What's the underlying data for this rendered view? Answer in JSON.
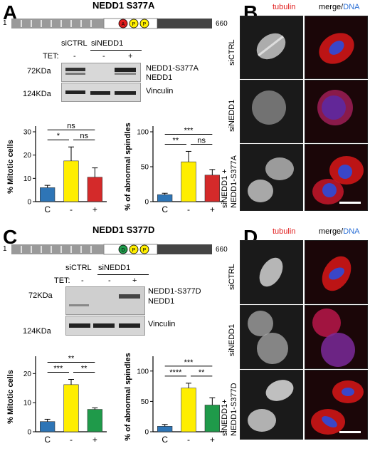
{
  "panelA": {
    "letter": "A",
    "title": "NEDD1 S377A",
    "domain_start": "1",
    "domain_end": "660",
    "circles": [
      "A",
      "P",
      "P"
    ],
    "blot_header": {
      "siCTRL": "siCTRL",
      "siNEDD1": "siNEDD1",
      "tet_label": "TET:",
      "tet_values": [
        "-",
        "-",
        "+"
      ]
    },
    "blot_labels": {
      "kda72": "72KDa",
      "kda124": "124KDa",
      "band1": "NEDD1-S377A",
      "band2": "NEDD1",
      "band3": "Vinculin"
    }
  },
  "panelB": {
    "letter": "B",
    "col1": "tubulin",
    "col2_merge": "merge/",
    "col2_dna": "DNA",
    "rows": [
      "siCTRL",
      "siNEDD1",
      "siNEDD1 +",
      "NEDD1-S377A"
    ]
  },
  "panelC": {
    "letter": "C",
    "title": "NEDD1 S377D",
    "domain_start": "1",
    "domain_end": "660",
    "circles": [
      "D",
      "P",
      "P"
    ],
    "blot_header": {
      "siCTRL": "siCTRL",
      "siNEDD1": "siNEDD1",
      "tet_label": "TET:",
      "tet_values": [
        "-",
        "-",
        "+"
      ]
    },
    "blot_labels": {
      "kda72": "72KDa",
      "kda124": "124KDa",
      "band1": "NEDD1-S377D",
      "band2": "NEDD1",
      "band3": "Vinculin"
    }
  },
  "panelD": {
    "letter": "D",
    "col1": "tubulin",
    "col2_merge": "merge/",
    "col2_dna": "DNA",
    "rows": [
      "siCTRL",
      "siNEDD1",
      "siNEDD1+",
      "NEDD1-S377D"
    ]
  },
  "colors": {
    "C": "#2e75b6",
    "minus": "#ffee00",
    "plusA": "#d42a2a",
    "plusD": "#1f9a4a",
    "red": "#e01c1c",
    "blue": "#2a6fd6"
  },
  "chart_data": [
    {
      "type": "bar",
      "ylabel": "% Mitotic cells",
      "categories": [
        "C",
        "-",
        "+"
      ],
      "values": [
        6,
        17.5,
        10.5
      ],
      "errors": [
        1,
        6,
        4
      ],
      "yticks": [
        0,
        10,
        20,
        30
      ],
      "ylim": [
        0,
        30
      ],
      "sig": [
        {
          "pair": [
            0,
            2
          ],
          "label": "ns"
        },
        {
          "pair": [
            0,
            1
          ],
          "label": "*"
        },
        {
          "pair": [
            1,
            2
          ],
          "label": "ns"
        }
      ]
    },
    {
      "type": "bar",
      "ylabel": "% of abnormal spindles",
      "categories": [
        "C",
        "-",
        "+"
      ],
      "values": [
        10,
        57,
        38
      ],
      "errors": [
        2,
        15,
        8
      ],
      "yticks": [
        0,
        50,
        100
      ],
      "ylim": [
        0,
        100
      ],
      "sig": [
        {
          "pair": [
            0,
            2
          ],
          "label": "***"
        },
        {
          "pair": [
            0,
            1
          ],
          "label": "**"
        },
        {
          "pair": [
            1,
            2
          ],
          "label": "ns"
        }
      ]
    },
    {
      "type": "bar",
      "ylabel": "% Mitotic cells",
      "categories": [
        "C",
        "-",
        "+"
      ],
      "values": [
        3.5,
        16.2,
        7.7
      ],
      "errors": [
        0.8,
        1.8,
        0.5
      ],
      "yticks": [
        0,
        10,
        20
      ],
      "ylim": [
        0,
        24
      ],
      "sig": [
        {
          "pair": [
            0,
            2
          ],
          "label": "**"
        },
        {
          "pair": [
            0,
            1
          ],
          "label": "***"
        },
        {
          "pair": [
            1,
            2
          ],
          "label": "**"
        }
      ]
    },
    {
      "type": "bar",
      "ylabel": "% of abnormal spindles",
      "categories": [
        "C",
        "-",
        "+"
      ],
      "values": [
        9,
        72,
        44
      ],
      "errors": [
        3,
        8,
        12
      ],
      "yticks": [
        0,
        50,
        100
      ],
      "ylim": [
        0,
        115
      ],
      "sig": [
        {
          "pair": [
            0,
            2
          ],
          "label": "***"
        },
        {
          "pair": [
            0,
            1
          ],
          "label": "****"
        },
        {
          "pair": [
            1,
            2
          ],
          "label": "**"
        }
      ]
    }
  ]
}
